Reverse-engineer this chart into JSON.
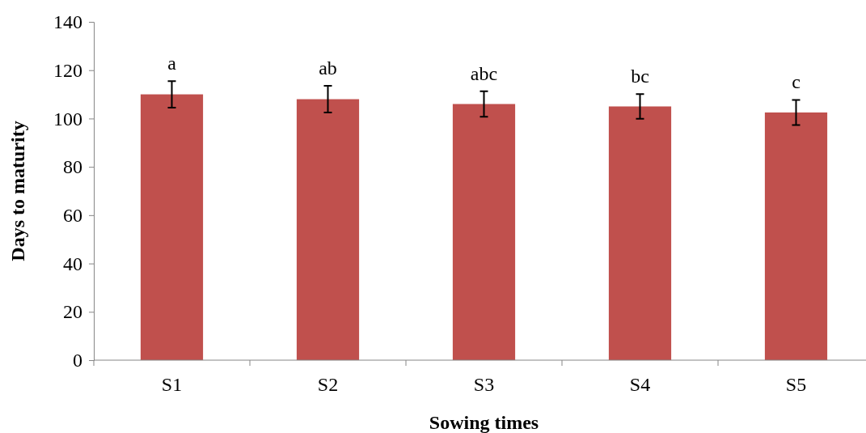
{
  "chart_data": {
    "type": "bar",
    "xlabel": "Sowing times",
    "ylabel": "Days to maturity",
    "categories": [
      "S1",
      "S2",
      "S3",
      "S4",
      "S5"
    ],
    "values": [
      110,
      108,
      106,
      105,
      102.5
    ],
    "errors": [
      5.5,
      5.5,
      5.3,
      5.1,
      5.2
    ],
    "color": "#c0504d",
    "ylim": [
      0,
      140
    ],
    "yticks": [
      0,
      20,
      40,
      60,
      80,
      100,
      120,
      140
    ],
    "grid": false,
    "annotations": [
      "a",
      "ab",
      "abc",
      "bc",
      "c"
    ]
  }
}
